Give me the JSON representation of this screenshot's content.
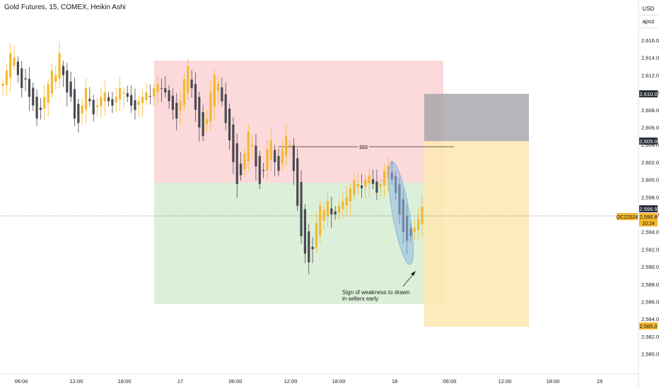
{
  "header": {
    "title": "Gold Futures, 15, COMEX, Heikin Ashi"
  },
  "price_scale": {
    "currency": "USD",
    "mode": "apoz",
    "ticks": [
      "2,616.0",
      "2,614.0",
      "2,612.0",
      "2,610.0",
      "2,608.0",
      "2,606.0",
      "2,604.0",
      "2,602.0",
      "2,600.0",
      "2,598.0",
      "2,596.0",
      "2,594.0",
      "2,592.0",
      "2,590.0",
      "2,588.0",
      "2,586.0",
      "2,584.0",
      "2,582.0",
      "2,580.0"
    ]
  },
  "time_axis": {
    "labels": [
      "06:00",
      "12:00",
      "18:00",
      "17",
      "06:00",
      "12:00",
      "18:00",
      "18",
      "06:00",
      "12:00",
      "18:00",
      "19"
    ]
  },
  "markers": {
    "target_label": "2,610.0",
    "entry_label": "2,605.0",
    "last_label": "2,596.9",
    "symbol_label": "GCZ2024",
    "symbol_price": "2,596.8",
    "countdown": "10:24",
    "stop_label": "2,585.0"
  },
  "annotations": {
    "liquidity_label": "$$$",
    "note_line1": "Sign of weakness to drawn",
    "note_line2": "in sellers early"
  },
  "colors": {
    "bull": "#f5b82e",
    "bear": "#4a4a52",
    "supply_zone": "#fcd9db",
    "demand_zone": "#dcefd9",
    "target_box": "#9e9ea3",
    "stop_box": "#fde8b0",
    "ellipse": "#8fb9e3"
  },
  "chart_data": {
    "type": "candlestick",
    "title": "Gold Futures, 15, COMEX, Heikin Ashi",
    "ylim": [
      2580,
      2617
    ],
    "grid": false,
    "series": [
      {
        "name": "GCZ2024",
        "close_estimates": [
          2611.0,
          2612.5,
          2614.5,
          2614.0,
          2612.0,
          2610.5,
          2611.5,
          2609.5,
          2608.5,
          2607.0,
          2608.0,
          2609.5,
          2611.0,
          2612.5,
          2612.0,
          2614.5,
          2612.0,
          2610.0,
          2609.5,
          2607.0,
          2606.5,
          2608.5,
          2610.5,
          2609.0,
          2607.5,
          2608.5,
          2609.5,
          2610.0,
          2609.0,
          2608.5,
          2609.5,
          2610.5,
          2610.0,
          2609.5,
          2608.5,
          2608.0,
          2609.0,
          2609.5,
          2610.0,
          2609.5,
          2610.5,
          2611.0,
          2610.5,
          2610.0,
          2609.0,
          2608.0,
          2607.0,
          2609.0,
          2611.5,
          2613.0,
          2610.5,
          2608.0,
          2606.0,
          2605.0,
          2607.0,
          2610.0,
          2612.0,
          2611.0,
          2609.0,
          2606.5,
          2604.5,
          2602.0,
          2599.5,
          2600.5,
          2603.0,
          2605.5,
          2604.0,
          2601.5,
          2599.5,
          2601.0,
          2603.5,
          2604.5,
          2602.0,
          2601.0,
          2603.5,
          2605.0,
          2604.0,
          2601.0,
          2597.0,
          2593.5,
          2591.5,
          2590.5,
          2592.0,
          2595.0,
          2597.0,
          2596.5,
          2597.5,
          2596.0,
          2596.0,
          2597.0,
          2597.5,
          2598.0,
          2599.0,
          2600.0,
          2599.5,
          2599.0,
          2600.0,
          2600.5,
          2599.5,
          2598.5,
          2599.5,
          2601.0,
          2601.5,
          2600.0,
          2598.5,
          2596.0,
          2594.0,
          2593.0,
          2593.5,
          2594.5,
          2595.5,
          2596.9
        ]
      }
    ],
    "zones": [
      {
        "name": "supply",
        "from": 2599.7,
        "to": 2613.5
      },
      {
        "name": "demand",
        "from": 2587.3,
        "to": 2599.7
      },
      {
        "name": "target",
        "from": 2605.0,
        "to": 2610.0
      },
      {
        "name": "stop",
        "from": 2585.0,
        "to": 2605.0
      }
    ],
    "levels": {
      "target": 2610.0,
      "entry": 2605.0,
      "last": 2596.9,
      "stop": 2585.0
    }
  }
}
